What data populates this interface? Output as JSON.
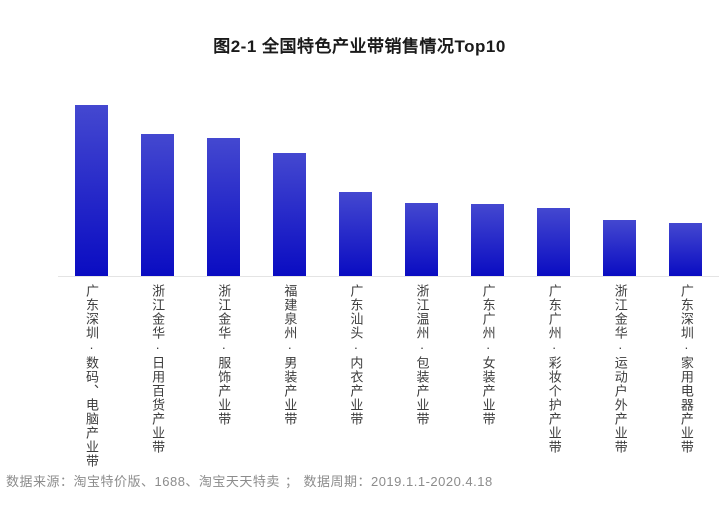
{
  "title": "图2-1 全国特色产业带销售情况Top10",
  "chart_data": {
    "type": "bar",
    "title": "图2-1 全国特色产业带销售情况Top10",
    "categories": [
      "广东深圳·数码、电脑产业带",
      "浙江金华·日用百货产业带",
      "浙江金华·服饰产业带",
      "福建泉州·男装产业带",
      "广东汕头·内衣产业带",
      "浙江温州·包装产业带",
      "广东广州·女装产业带",
      "广东广州·彩妆个护产业带",
      "浙江金华·运动户外产业带",
      "广东深圳·家用电器产业带"
    ],
    "values": [
      100,
      83,
      81,
      72,
      49,
      43,
      42,
      40,
      33,
      31
    ],
    "values_note": "no numeric axis or data labels shown; values are relative bar heights with max bar = 100",
    "xlabel": "",
    "ylabel": "",
    "grid": false,
    "legend": false,
    "value_axis_visible": false,
    "bar_gradient": [
      "#4448d0",
      "#0a0cc2"
    ]
  },
  "footer": {
    "source_label": "数据来源：",
    "sources": "淘宝特价版、1688、淘宝天天特卖",
    "separator": "；",
    "period_label": "数据周期：",
    "period": "2019.1.1-2020.4.18"
  },
  "colors": {
    "bar_gradient_top": "#4448d0",
    "bar_gradient_bottom": "#0a0cc2",
    "axis_line": "#e4e4e4",
    "title_text": "#1a1a1a",
    "label_text": "#3d3d3d",
    "footer_text": "#8c8c8c"
  }
}
